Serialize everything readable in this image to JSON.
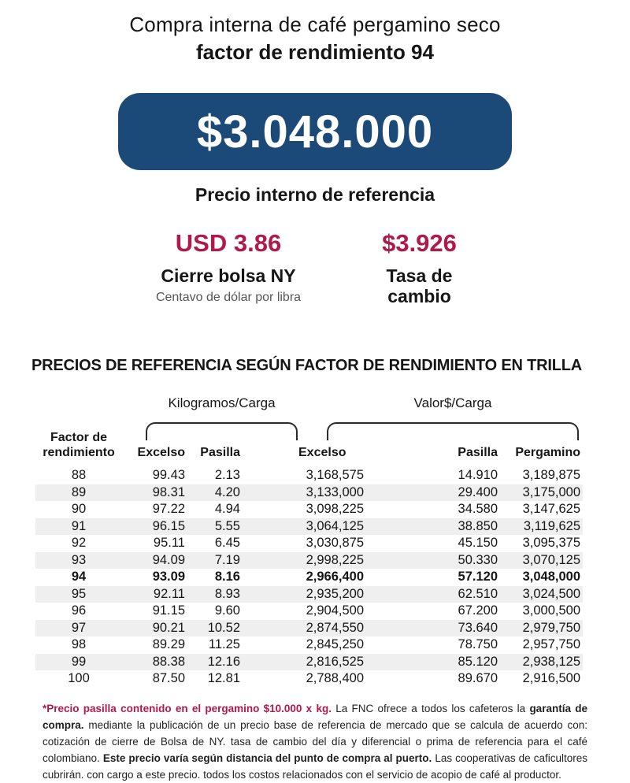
{
  "colors": {
    "navy": "#1c4a78",
    "crimson": "#b01a4a",
    "shade": "#efefef"
  },
  "header": {
    "title_line1": "Compra interna de café pergamino seco",
    "title_line2": "factor de rendimiento 94"
  },
  "price_badge": {
    "value": "$3.048.000",
    "caption": "Precio interno de referencia"
  },
  "stats": {
    "ny": {
      "value": "USD 3.86",
      "label": "Cierre bolsa NY",
      "sublabel": "Centavo de dólar por libra"
    },
    "exchange": {
      "value": "$3.926",
      "label": "Tasa de cambio"
    }
  },
  "section_title": "PRECIOS DE REFERENCIA SEGÚN FACTOR DE RENDIMIENTO EN TRILLA",
  "table": {
    "group_headers": {
      "kilogramos": "Kilogramos/Carga",
      "valor": "Valor$/Carga"
    },
    "columns": {
      "factor": "Factor de rendimiento",
      "excelso_kg": "Excelso",
      "pasilla_kg": "Pasilla",
      "excelso_valor": "Excelso",
      "pasilla_valor": "Pasilla",
      "pergamino": "Pergamino"
    },
    "highlight_factor": "94",
    "rows": [
      [
        "88",
        "99.43",
        "2.13",
        "3,168,575",
        "14.910",
        "3,189,875"
      ],
      [
        "89",
        "98.31",
        "4.20",
        "3,133,000",
        "29.400",
        "3,175,000"
      ],
      [
        "90",
        "97.22",
        "4.94",
        "3,098,225",
        "34.580",
        "3,147,625"
      ],
      [
        "91",
        "96.15",
        "5.55",
        "3,064,125",
        "38.850",
        "3,119,625"
      ],
      [
        "92",
        "95.11",
        "6.45",
        "3,030,875",
        "45.150",
        "3,095,375"
      ],
      [
        "93",
        "94.09",
        "7.19",
        "2,998,225",
        "50.330",
        "3,070,125"
      ],
      [
        "94",
        "93.09",
        "8.16",
        "2,966,400",
        "57.120",
        "3,048,000"
      ],
      [
        "95",
        "92.11",
        "8.93",
        "2,935,200",
        "62.510",
        "3,024,500"
      ],
      [
        "96",
        "91.15",
        "9.60",
        "2,904,500",
        "67.200",
        "3,000,500"
      ],
      [
        "97",
        "90.21",
        "10.52",
        "2,874,550",
        "73.640",
        "2,979,750"
      ],
      [
        "98",
        "89.29",
        "11.25",
        "2,845,250",
        "78.750",
        "2,957,750"
      ],
      [
        "99",
        "88.38",
        "12.16",
        "2,816,525",
        "85.120",
        "2,938,125"
      ],
      [
        "100",
        "87.50",
        "12.81",
        "2,788,400",
        "89.670",
        "2,916,500"
      ]
    ]
  },
  "footnote": {
    "lead": "*Precio pasilla contenido en el pergamino $10.000 x kg.",
    "text_a": "La FNC ofrece a todos los cafeteros la",
    "bold_a": "garantía de compra.",
    "text_b": "mediante la publicación de un precio base de referencia de mercado que se calcula de acuerdo con: cotización de cierre de Bolsa de NY. tasa de cambio del día y diferencial o prima de referencia para el café colombiano.",
    "bold_b": "Este precio varía según distancia del punto de compra al puerto.",
    "text_c": "Las cooperativas de caficultores cubrirán. con cargo a este precio. todos los costos relacionados con el servicio de acopio de café al productor."
  }
}
